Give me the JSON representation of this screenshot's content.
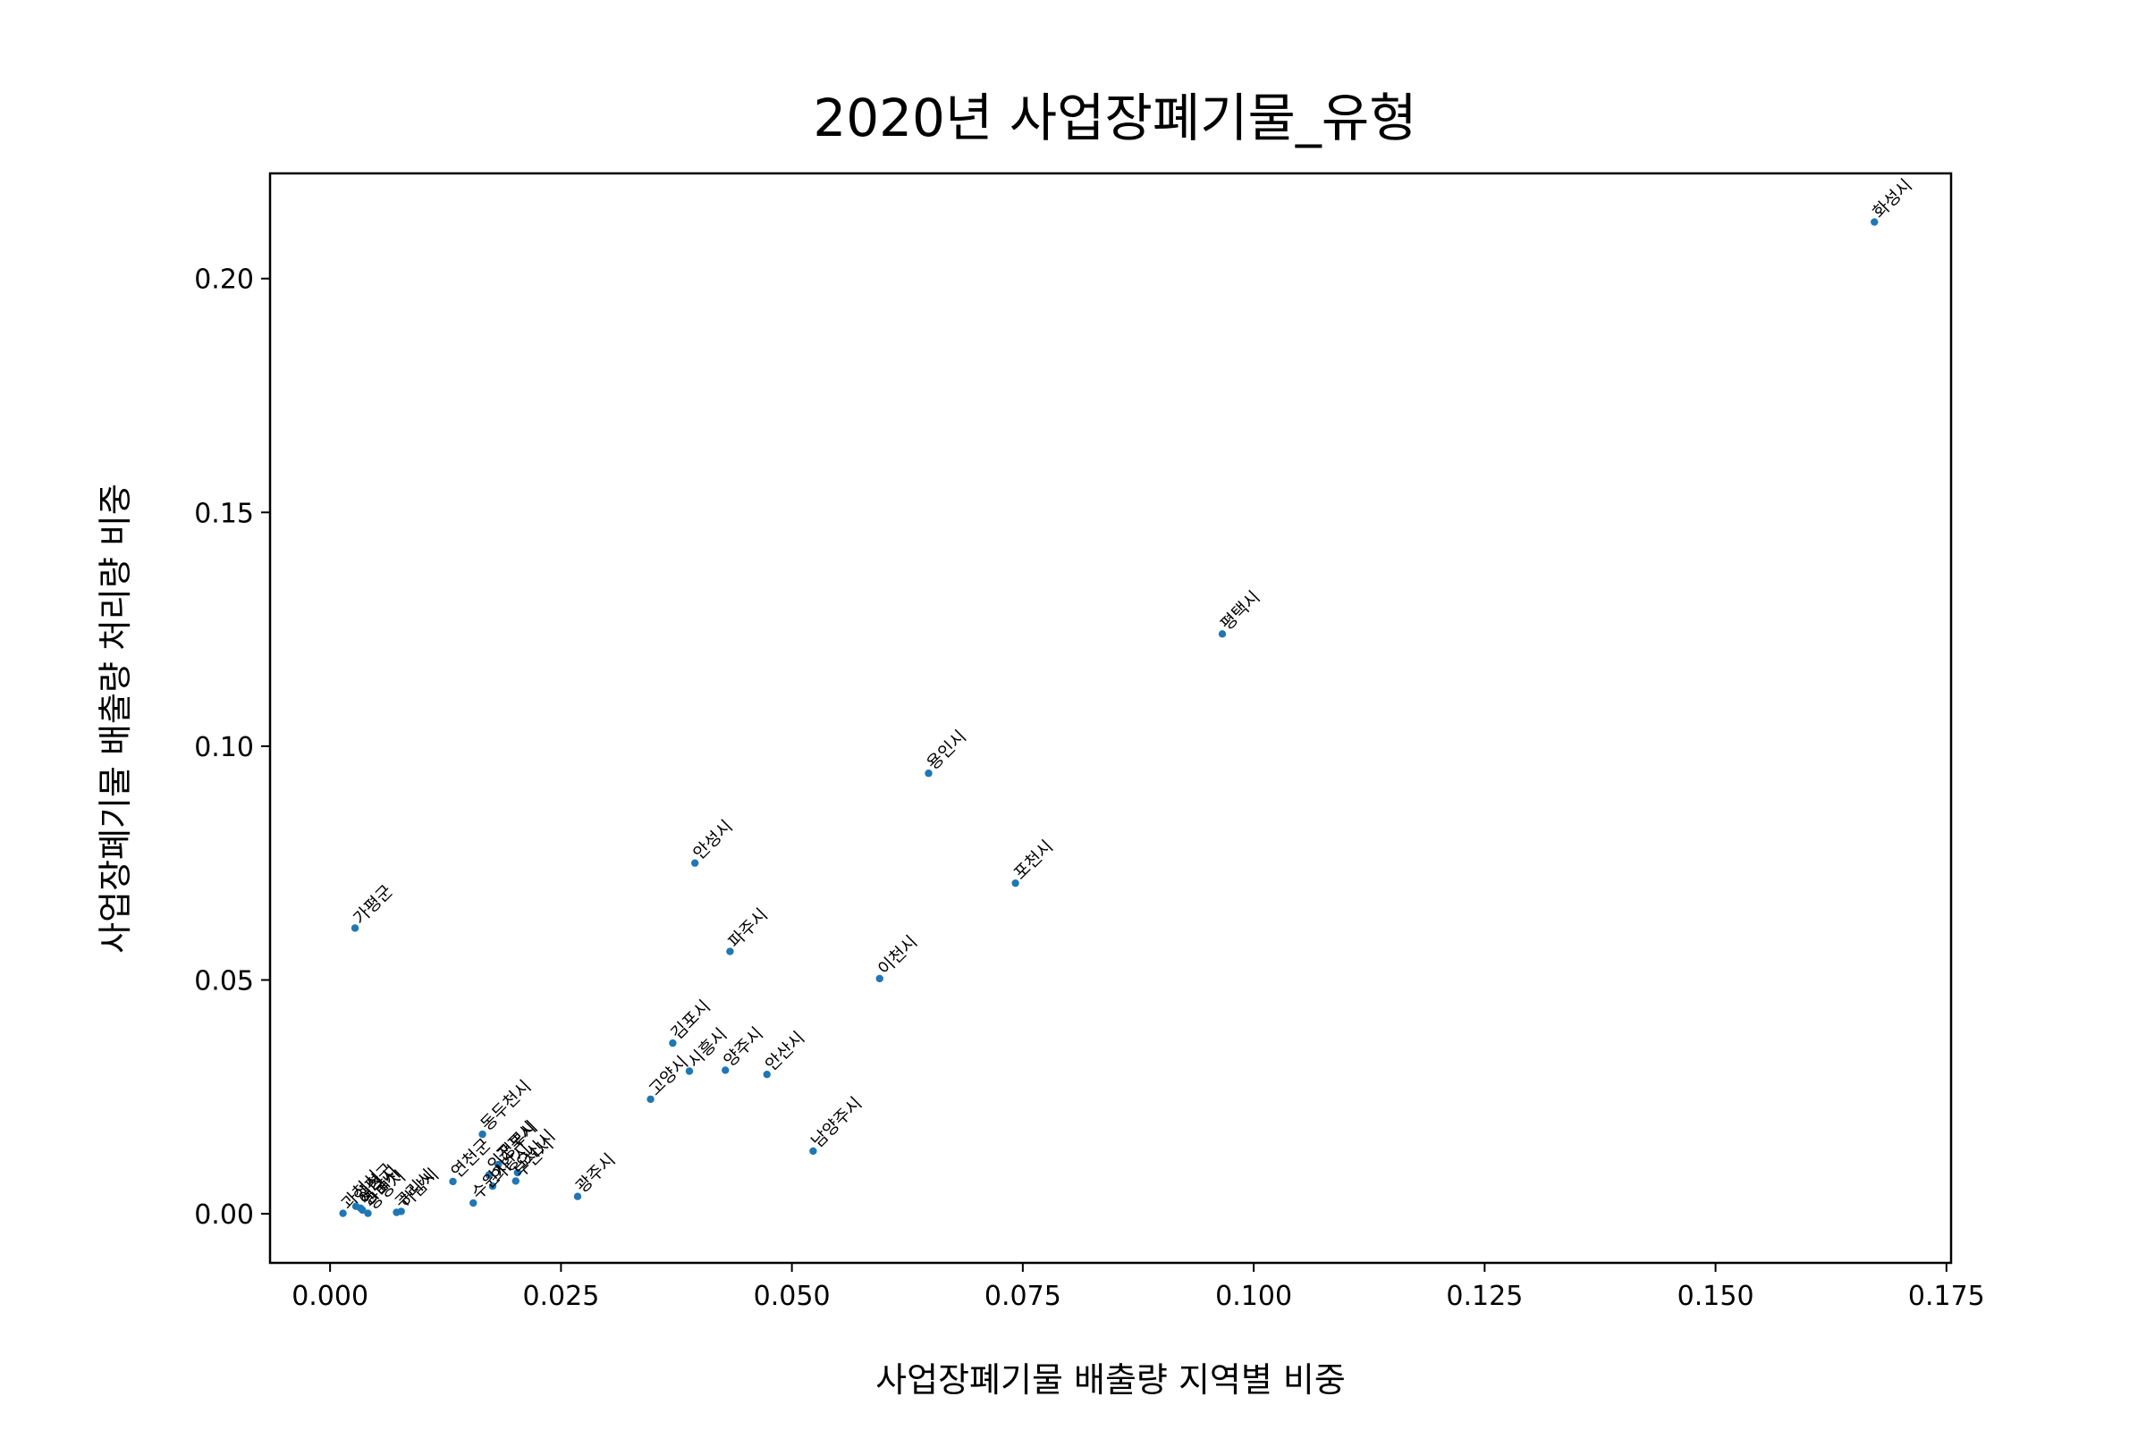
{
  "chart_data": {
    "type": "scatter",
    "title": "2020년 사업장폐기물_유형",
    "xlabel": "사업장폐기물 배출량 지역별 비중",
    "ylabel": "사업장폐기물 배출량 처리량 비중",
    "xlim": [
      -0.0065,
      0.1755
    ],
    "ylim": [
      -0.0105,
      0.2225
    ],
    "xticks": [
      "0.000",
      "0.025",
      "0.050",
      "0.075",
      "0.100",
      "0.125",
      "0.150",
      "0.175"
    ],
    "yticks": [
      "0.00",
      "0.05",
      "0.10",
      "0.15",
      "0.20"
    ],
    "grid": false,
    "point_color": "#1f77b4",
    "points": [
      {
        "label": "화성시",
        "x": 0.1672,
        "y": 0.2121
      },
      {
        "label": "평택시",
        "x": 0.0966,
        "y": 0.124
      },
      {
        "label": "용인시",
        "x": 0.0648,
        "y": 0.0942
      },
      {
        "label": "포천시",
        "x": 0.0742,
        "y": 0.0707
      },
      {
        "label": "안성시",
        "x": 0.0395,
        "y": 0.075
      },
      {
        "label": "파주시",
        "x": 0.0433,
        "y": 0.0561
      },
      {
        "label": "이천시",
        "x": 0.0595,
        "y": 0.0503
      },
      {
        "label": "가평군",
        "x": 0.0027,
        "y": 0.0611
      },
      {
        "label": "김포시",
        "x": 0.0371,
        "y": 0.0365
      },
      {
        "label": "시흥시",
        "x": 0.0389,
        "y": 0.0305
      },
      {
        "label": "양주시",
        "x": 0.0428,
        "y": 0.0307
      },
      {
        "label": "안산시",
        "x": 0.0473,
        "y": 0.0298
      },
      {
        "label": "고양시",
        "x": 0.0347,
        "y": 0.0245
      },
      {
        "label": "남양주시",
        "x": 0.0523,
        "y": 0.0134
      },
      {
        "label": "광주시",
        "x": 0.0268,
        "y": 0.0037
      },
      {
        "label": "연천군",
        "x": 0.0133,
        "y": 0.0069
      },
      {
        "label": "동두천시",
        "x": 0.0165,
        "y": 0.017
      },
      {
        "label": "의정부시",
        "x": 0.0172,
        "y": 0.0083
      },
      {
        "label": "군포시",
        "x": 0.0182,
        "y": 0.0105
      },
      {
        "label": "의왕시",
        "x": 0.0176,
        "y": 0.0059
      },
      {
        "label": "오산시",
        "x": 0.0203,
        "y": 0.0088
      },
      {
        "label": "부천시",
        "x": 0.0201,
        "y": 0.007
      },
      {
        "label": "수원시",
        "x": 0.0155,
        "y": 0.0023
      },
      {
        "label": "하남시",
        "x": 0.0077,
        "y": 0.0005
      },
      {
        "label": "구리시",
        "x": 0.0072,
        "y": 0.0003
      },
      {
        "label": "광명시",
        "x": 0.0041,
        "y": 0.0001
      },
      {
        "label": "과천시",
        "x": 0.0014,
        "y": 0.0001
      },
      {
        "label": "성남시",
        "x": 0.0035,
        "y": 0.0008
      },
      {
        "label": "양평군",
        "x": 0.0028,
        "y": 0.0016
      },
      {
        "label": "여주시",
        "x": 0.0033,
        "y": 0.0012
      }
    ]
  }
}
